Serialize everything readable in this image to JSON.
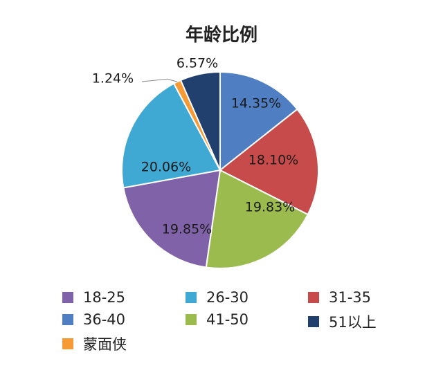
{
  "chart_data": {
    "type": "pie",
    "title": "年龄比例",
    "legend_position": "bottom",
    "slices": [
      {
        "name": "36-40",
        "value": 14.35,
        "label": "14.35%",
        "color": "#4f7ec3"
      },
      {
        "name": "31-35",
        "value": 18.1,
        "label": "18.10%",
        "color": "#c84b4b"
      },
      {
        "name": "41-50",
        "value": 19.83,
        "label": "19.83%",
        "color": "#9bbb4f"
      },
      {
        "name": "18-25",
        "value": 19.85,
        "label": "19.85%",
        "color": "#8062a8"
      },
      {
        "name": "26-30",
        "value": 20.06,
        "label": "20.06%",
        "color": "#3fa9d4"
      },
      {
        "name": "蒙面侠",
        "value": 1.24,
        "label": "1.24%",
        "color": "#f69a36"
      },
      {
        "name": "51以上",
        "value": 6.57,
        "label": "6.57%",
        "color": "#21406e"
      }
    ],
    "legend": [
      {
        "name": "18-25",
        "color": "#8062a8"
      },
      {
        "name": "26-30",
        "color": "#3fa9d4"
      },
      {
        "name": "31-35",
        "color": "#c84b4b"
      },
      {
        "name": "36-40",
        "color": "#4f7ec3"
      },
      {
        "name": "41-50",
        "color": "#9bbb4f"
      },
      {
        "name": "51以上",
        "color": "#21406e"
      },
      {
        "name": "蒙面侠",
        "color": "#f69a36"
      }
    ]
  }
}
